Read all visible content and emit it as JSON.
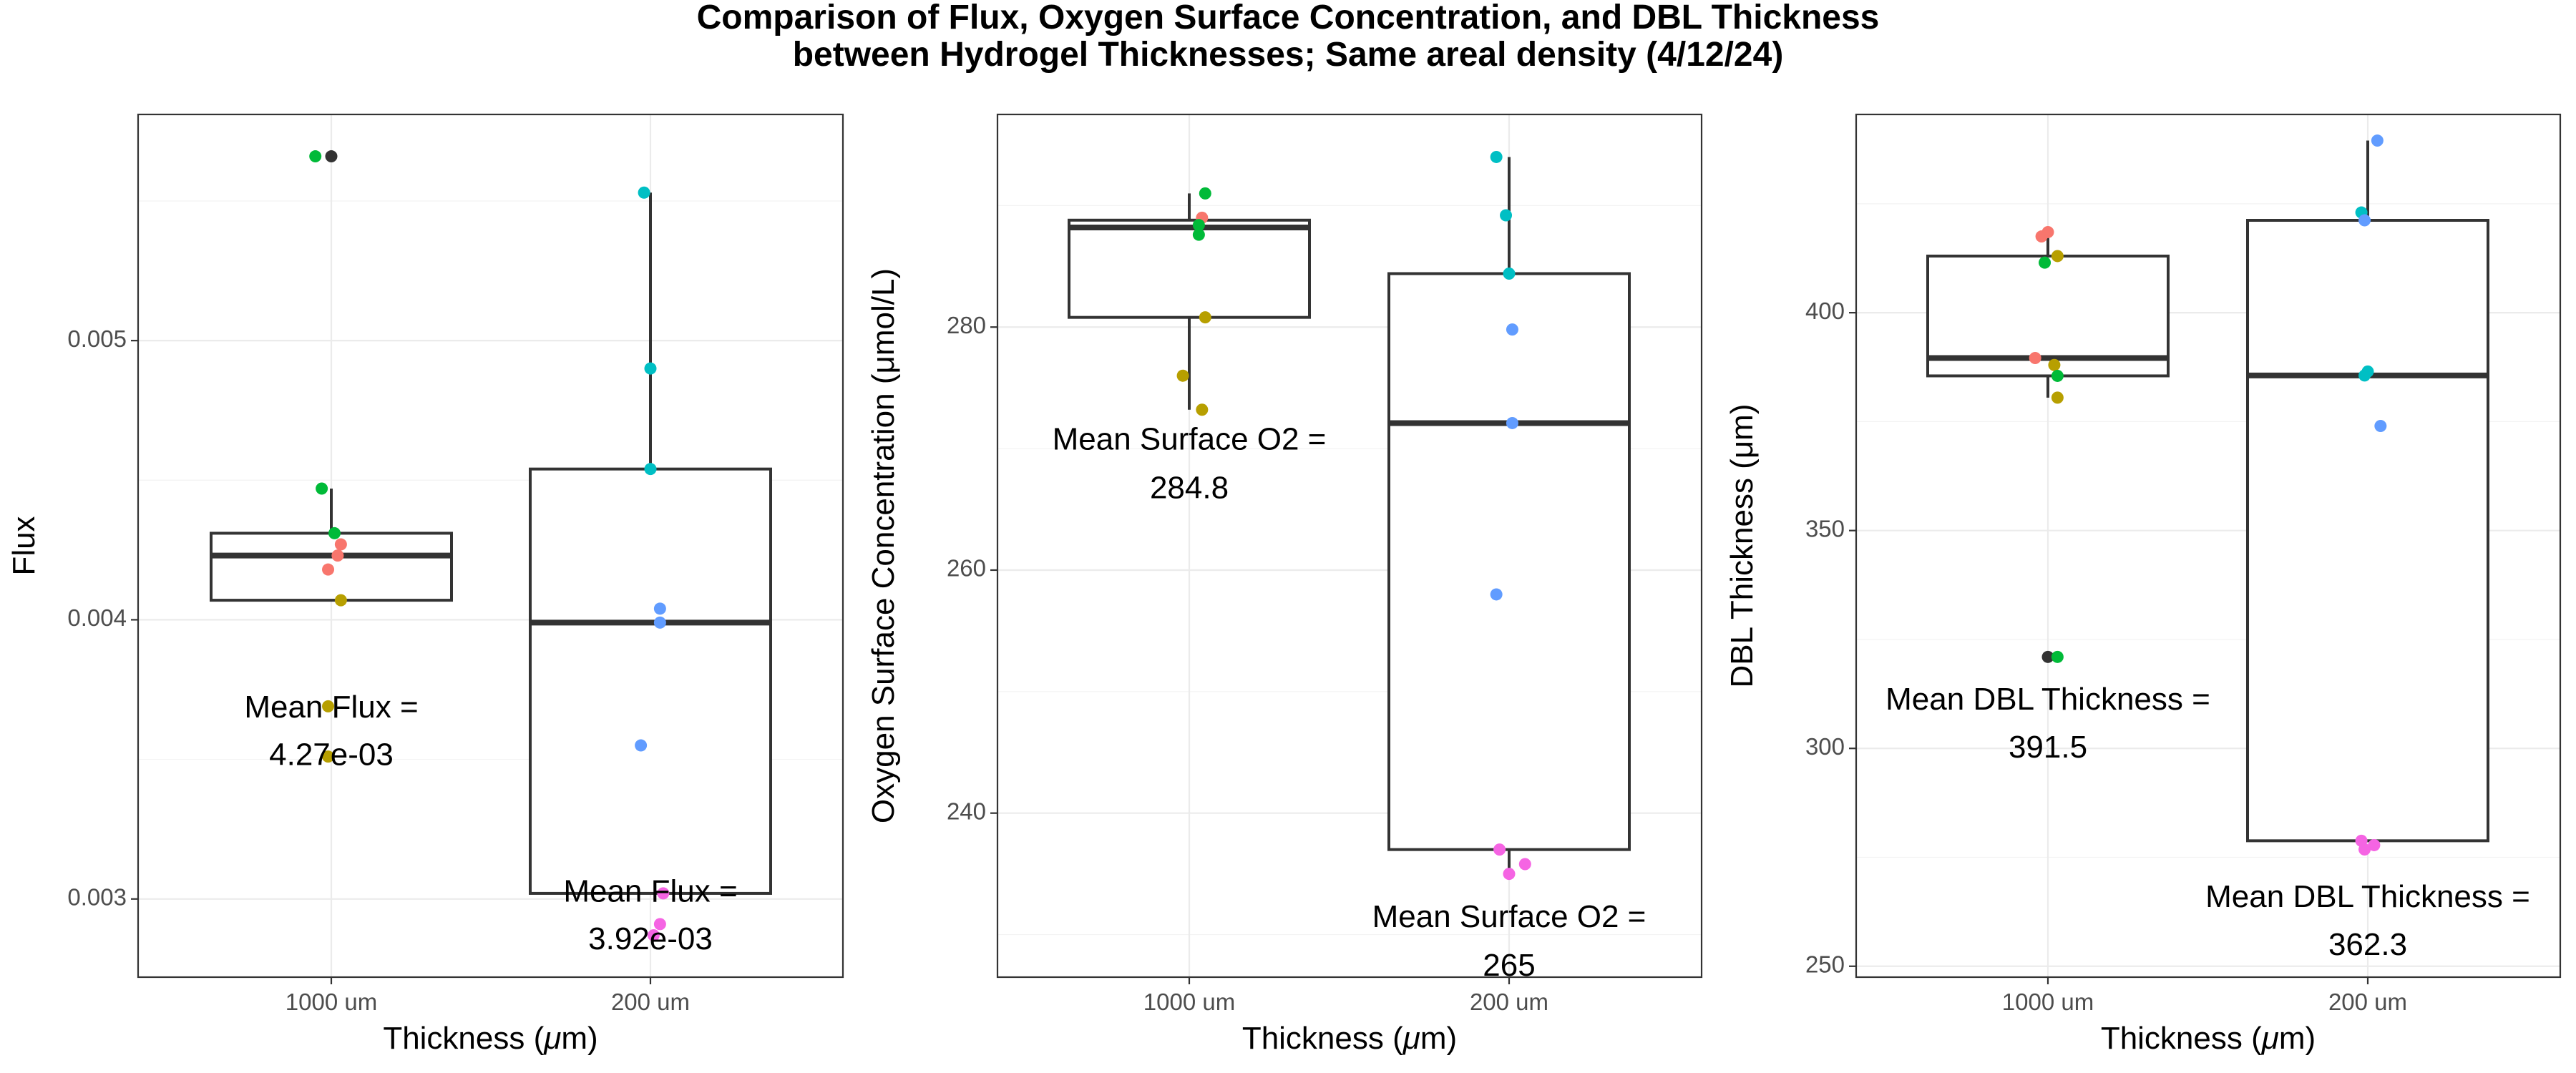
{
  "figure": {
    "title_line1": "Comparison of Flux, Oxygen Surface Concentration, and DBL Thickness",
    "title_line2": "between Hydrogel Thicknesses; Same areal density (4/12/24)"
  },
  "chart_data": [
    {
      "type": "box",
      "xlabel_pre": "Thickness (",
      "xlabel_mu": "μ",
      "xlabel_post": "m)",
      "ylabel": "Flux",
      "categories": [
        "1000 um",
        "200 um"
      ],
      "ylim": [
        0.00272,
        0.00581
      ],
      "yticks": [
        0.003,
        0.004,
        0.005
      ],
      "ytick_labels": [
        "0.003",
        "0.004",
        "0.005"
      ],
      "boxes": [
        {
          "q1": 0.00407,
          "median": 0.00423,
          "q3": 0.00431,
          "whisker_low": 0.00407,
          "whisker_high": 0.00447
        },
        {
          "q1": 0.00302,
          "median": 0.00399,
          "q3": 0.00454,
          "whisker_low": 0.00302,
          "whisker_high": 0.00553
        }
      ],
      "points": [
        {
          "x": 0,
          "dx": -0.05,
          "y": 0.00566,
          "color": "#00ba38"
        },
        {
          "x": 0,
          "dx": 0.0,
          "y": 0.00566,
          "color": "#333333"
        },
        {
          "x": 0,
          "dx": -0.03,
          "y": 0.00447,
          "color": "#00ba38"
        },
        {
          "x": 0,
          "dx": 0.01,
          "y": 0.00431,
          "color": "#00ba38"
        },
        {
          "x": 0,
          "dx": 0.03,
          "y": 0.00427,
          "color": "#f8766d"
        },
        {
          "x": 0,
          "dx": 0.02,
          "y": 0.00423,
          "color": "#f8766d"
        },
        {
          "x": 0,
          "dx": -0.01,
          "y": 0.00418,
          "color": "#f8766d"
        },
        {
          "x": 0,
          "dx": 0.03,
          "y": 0.00407,
          "color": "#b79f00"
        },
        {
          "x": 0,
          "dx": -0.01,
          "y": 0.00369,
          "color": "#b79f00"
        },
        {
          "x": 0,
          "dx": -0.01,
          "y": 0.00351,
          "color": "#b79f00"
        },
        {
          "x": 1,
          "dx": -0.02,
          "y": 0.00553,
          "color": "#00bfc4"
        },
        {
          "x": 1,
          "dx": 0.0,
          "y": 0.0049,
          "color": "#00bfc4"
        },
        {
          "x": 1,
          "dx": 0.0,
          "y": 0.00454,
          "color": "#00bfc4"
        },
        {
          "x": 1,
          "dx": 0.03,
          "y": 0.00404,
          "color": "#619cff"
        },
        {
          "x": 1,
          "dx": 0.03,
          "y": 0.00399,
          "color": "#619cff"
        },
        {
          "x": 1,
          "dx": -0.03,
          "y": 0.00355,
          "color": "#619cff"
        },
        {
          "x": 1,
          "dx": 0.04,
          "y": 0.00302,
          "color": "#f564e3"
        },
        {
          "x": 1,
          "dx": 0.03,
          "y": 0.00291,
          "color": "#f564e3"
        },
        {
          "x": 1,
          "dx": 0.01,
          "y": 0.00287,
          "color": "#f564e3"
        }
      ],
      "annotations": [
        {
          "x": 0,
          "line1": "Mean Flux =",
          "line2": "4.27e-03",
          "y1": 0.00368,
          "y2": 0.00351
        },
        {
          "x": 1,
          "line1": "Mean Flux =",
          "line2": "3.92e-03",
          "y1": 0.00302,
          "y2": 0.00285
        }
      ]
    },
    {
      "type": "box",
      "xlabel_pre": "Thickness (",
      "xlabel_mu": "μ",
      "xlabel_post": "m)",
      "ylabel": "Oxygen Surface Concentration (μmol/L)",
      "categories": [
        "1000 um",
        "200 um"
      ],
      "ylim": [
        226.5,
        297.5
      ],
      "yticks": [
        240,
        260,
        280
      ],
      "ytick_labels": [
        "240",
        "260",
        "280"
      ],
      "boxes": [
        {
          "q1": 280.8,
          "median": 288.2,
          "q3": 288.8,
          "whisker_low": 273.2,
          "whisker_high": 291.0
        },
        {
          "q1": 237.0,
          "median": 272.1,
          "q3": 284.4,
          "whisker_low": 235.0,
          "whisker_high": 294.0
        }
      ],
      "points": [
        {
          "x": 0,
          "dx": 0.05,
          "y": 291.0,
          "color": "#00ba38"
        },
        {
          "x": 0,
          "dx": 0.04,
          "y": 289.0,
          "color": "#f8766d"
        },
        {
          "x": 0,
          "dx": 0.03,
          "y": 288.4,
          "color": "#00ba38"
        },
        {
          "x": 0,
          "dx": 0.03,
          "y": 287.6,
          "color": "#00ba38"
        },
        {
          "x": 0,
          "dx": 0.05,
          "y": 280.8,
          "color": "#b79f00"
        },
        {
          "x": 0,
          "dx": -0.02,
          "y": 276.0,
          "color": "#b79f00"
        },
        {
          "x": 0,
          "dx": 0.04,
          "y": 273.2,
          "color": "#b79f00"
        },
        {
          "x": 1,
          "dx": -0.04,
          "y": 294.0,
          "color": "#00bfc4"
        },
        {
          "x": 1,
          "dx": -0.01,
          "y": 289.2,
          "color": "#00bfc4"
        },
        {
          "x": 1,
          "dx": 0.0,
          "y": 284.4,
          "color": "#00bfc4"
        },
        {
          "x": 1,
          "dx": 0.01,
          "y": 279.8,
          "color": "#619cff"
        },
        {
          "x": 1,
          "dx": 0.01,
          "y": 272.1,
          "color": "#619cff"
        },
        {
          "x": 1,
          "dx": -0.04,
          "y": 258.0,
          "color": "#619cff"
        },
        {
          "x": 1,
          "dx": -0.03,
          "y": 237.0,
          "color": "#f564e3"
        },
        {
          "x": 1,
          "dx": 0.05,
          "y": 235.8,
          "color": "#f564e3"
        },
        {
          "x": 1,
          "dx": 0.0,
          "y": 235.0,
          "color": "#f564e3"
        }
      ],
      "annotations": [
        {
          "x": 0,
          "line1": "Mean Surface O2 =",
          "line2": "284.8",
          "y1": 270.6,
          "y2": 266.6
        },
        {
          "x": 1,
          "line1": "Mean Surface O2 =",
          "line2": "265",
          "y1": 231.3,
          "y2": 227.3
        }
      ]
    },
    {
      "type": "box",
      "xlabel_pre": "Thickness (",
      "xlabel_mu": "μ",
      "xlabel_post": "m)",
      "ylabel": "DBL Thickness (μm)",
      "categories": [
        "1000 um",
        "200 um"
      ],
      "ylim": [
        247.5,
        445.5
      ],
      "yticks": [
        250,
        300,
        350,
        400
      ],
      "ytick_labels": [
        "250",
        "300",
        "350",
        "400"
      ],
      "boxes": [
        {
          "q1": 385.5,
          "median": 389.6,
          "q3": 413.0,
          "whisker_low": 380.5,
          "whisker_high": 418.5
        },
        {
          "q1": 278.8,
          "median": 385.6,
          "q3": 421.2,
          "whisker_low": 278.8,
          "whisker_high": 439.5
        }
      ],
      "points": [
        {
          "x": 0,
          "dx": 0.0,
          "y": 418.5,
          "color": "#f8766d"
        },
        {
          "x": 0,
          "dx": -0.02,
          "y": 417.5,
          "color": "#f8766d"
        },
        {
          "x": 0,
          "dx": 0.03,
          "y": 413.0,
          "color": "#b79f00"
        },
        {
          "x": 0,
          "dx": -0.01,
          "y": 411.5,
          "color": "#00ba38"
        },
        {
          "x": 0,
          "dx": -0.04,
          "y": 389.6,
          "color": "#f8766d"
        },
        {
          "x": 0,
          "dx": 0.02,
          "y": 388.0,
          "color": "#b79f00"
        },
        {
          "x": 0,
          "dx": 0.03,
          "y": 385.5,
          "color": "#00ba38"
        },
        {
          "x": 0,
          "dx": 0.03,
          "y": 380.5,
          "color": "#b79f00"
        },
        {
          "x": 0,
          "dx": 0.0,
          "y": 321.0,
          "color": "#333333"
        },
        {
          "x": 0,
          "dx": 0.03,
          "y": 321.0,
          "color": "#00ba38"
        },
        {
          "x": 1,
          "dx": 0.03,
          "y": 439.5,
          "color": "#619cff"
        },
        {
          "x": 1,
          "dx": -0.02,
          "y": 423.0,
          "color": "#00bfc4"
        },
        {
          "x": 1,
          "dx": -0.01,
          "y": 421.2,
          "color": "#619cff"
        },
        {
          "x": 1,
          "dx": 0.0,
          "y": 386.5,
          "color": "#00bfc4"
        },
        {
          "x": 1,
          "dx": -0.01,
          "y": 385.6,
          "color": "#00bfc4"
        },
        {
          "x": 1,
          "dx": 0.04,
          "y": 374.0,
          "color": "#619cff"
        },
        {
          "x": 1,
          "dx": -0.02,
          "y": 278.8,
          "color": "#f564e3"
        },
        {
          "x": 1,
          "dx": 0.02,
          "y": 277.8,
          "color": "#f564e3"
        },
        {
          "x": 1,
          "dx": -0.01,
          "y": 276.8,
          "color": "#f564e3"
        }
      ],
      "annotations": [
        {
          "x": 0,
          "line1": "Mean DBL Thickness =",
          "line2": "391.5",
          "y1": 310.8,
          "y2": 299.8
        },
        {
          "x": 1,
          "line1": "Mean DBL Thickness =",
          "line2": "362.3",
          "y1": 265.5,
          "y2": 254.5
        }
      ]
    }
  ]
}
